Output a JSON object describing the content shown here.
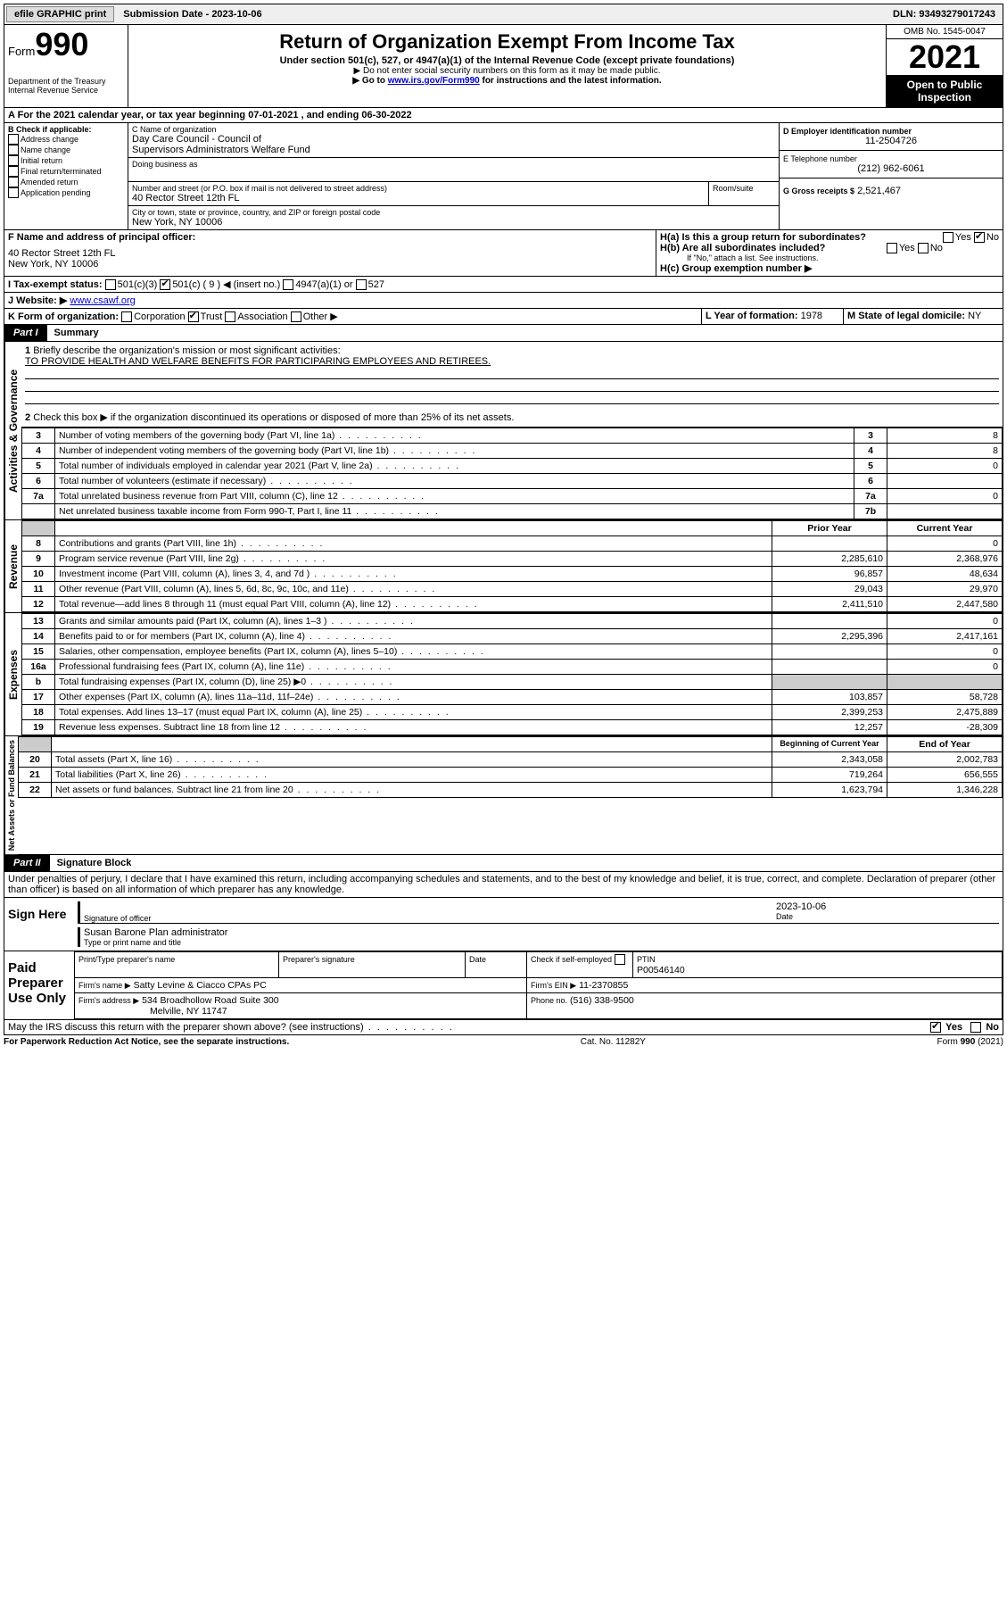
{
  "topbar": {
    "efile": "efile GRAPHIC print",
    "subdate_lbl": "Submission Date - 2023-10-06",
    "dln": "DLN: 93493279017243"
  },
  "header": {
    "form_word": "Form",
    "form_num": "990",
    "dept": "Department of the Treasury",
    "irs": "Internal Revenue Service",
    "title": "Return of Organization Exempt From Income Tax",
    "sub": "Under section 501(c), 527, or 4947(a)(1) of the Internal Revenue Code (except private foundations)",
    "ssn": "▶ Do not enter social security numbers on this form as it may be made public.",
    "goto_pre": "▶ Go to ",
    "goto_link": "www.irs.gov/Form990",
    "goto_post": " for instructions and the latest information.",
    "omb": "OMB No. 1545-0047",
    "year": "2021",
    "inspect": "Open to Public Inspection"
  },
  "A": {
    "line": "A For the 2021 calendar year, or tax year beginning 07-01-2021    , and ending 06-30-2022"
  },
  "B": {
    "hdr": "B Check if applicable:",
    "opts": [
      "Address change",
      "Name change",
      "Initial return",
      "Final return/terminated",
      "Amended return",
      "Application pending"
    ]
  },
  "C": {
    "name_lbl": "C Name of organization",
    "name1": "Day Care Council - Council of",
    "name2": "Supervisors Administrators Welfare Fund",
    "dba_lbl": "Doing business as",
    "addr_lbl": "Number and street (or P.O. box if mail is not delivered to street address)",
    "room_lbl": "Room/suite",
    "addr": "40 Rector Street 12th FL",
    "city_lbl": "City or town, state or province, country, and ZIP or foreign postal code",
    "city": "New York, NY  10006"
  },
  "D": {
    "lbl": "D Employer identification number",
    "val": "11-2504726"
  },
  "E": {
    "lbl": "E Telephone number",
    "val": "(212) 962-6061"
  },
  "G": {
    "lbl": "G Gross receipts $",
    "val": "2,521,467"
  },
  "F": {
    "lbl": "F  Name and address of principal officer:",
    "l1": "40 Rector Street 12th FL",
    "l2": "New York, NY  10006"
  },
  "H": {
    "a": "H(a)  Is this a group return for subordinates?",
    "b": "H(b)  Are all subordinates included?",
    "bnote": "If \"No,\" attach a list. See instructions.",
    "c": "H(c)  Group exemption number ▶",
    "yes": "Yes",
    "no": "No"
  },
  "I": {
    "lbl": "I    Tax-exempt status:",
    "opts": [
      "501(c)(3)",
      "501(c) ( 9 ) ◀ (insert no.)",
      "4947(a)(1) or",
      "527"
    ]
  },
  "J": {
    "lbl": "J   Website: ▶",
    "val": "www.csawf.org"
  },
  "K": {
    "lbl": "K Form of organization:",
    "opts": [
      "Corporation",
      "Trust",
      "Association",
      "Other ▶"
    ]
  },
  "L": {
    "lbl": "L Year of formation:",
    "val": "1978"
  },
  "M": {
    "lbl": "M State of legal domicile:",
    "val": "NY"
  },
  "part1": {
    "tag": "Part I",
    "title": "Summary",
    "q1": "Briefly describe the organization's mission or most significant activities:",
    "q1v": "TO PROVIDE HEALTH AND WELFARE BENEFITS FOR PARTICIPARING EMPLOYEES AND RETIREES.",
    "q2": "Check this box ▶        if the organization discontinued its operations or disposed of more than 25% of its net assets.",
    "rows_gov": [
      {
        "n": "3",
        "t": "Number of voting members of the governing body (Part VI, line 1a)",
        "b": "3",
        "v": "8"
      },
      {
        "n": "4",
        "t": "Number of independent voting members of the governing body (Part VI, line 1b)",
        "b": "4",
        "v": "8"
      },
      {
        "n": "5",
        "t": "Total number of individuals employed in calendar year 2021 (Part V, line 2a)",
        "b": "5",
        "v": "0"
      },
      {
        "n": "6",
        "t": "Total number of volunteers (estimate if necessary)",
        "b": "6",
        "v": ""
      },
      {
        "n": "7a",
        "t": "Total unrelated business revenue from Part VIII, column (C), line 12",
        "b": "7a",
        "v": "0"
      },
      {
        "n": "",
        "t": "Net unrelated business taxable income from Form 990-T, Part I, line 11",
        "b": "7b",
        "v": ""
      }
    ],
    "col_prior": "Prior Year",
    "col_curr": "Current Year",
    "revenue": [
      {
        "n": "8",
        "t": "Contributions and grants (Part VIII, line 1h)",
        "p": "",
        "c": "0"
      },
      {
        "n": "9",
        "t": "Program service revenue (Part VIII, line 2g)",
        "p": "2,285,610",
        "c": "2,368,976"
      },
      {
        "n": "10",
        "t": "Investment income (Part VIII, column (A), lines 3, 4, and 7d )",
        "p": "96,857",
        "c": "48,634"
      },
      {
        "n": "11",
        "t": "Other revenue (Part VIII, column (A), lines 5, 6d, 8c, 9c, 10c, and 11e)",
        "p": "29,043",
        "c": "29,970"
      },
      {
        "n": "12",
        "t": "Total revenue—add lines 8 through 11 (must equal Part VIII, column (A), line 12)",
        "p": "2,411,510",
        "c": "2,447,580"
      }
    ],
    "expenses": [
      {
        "n": "13",
        "t": "Grants and similar amounts paid (Part IX, column (A), lines 1–3 )",
        "p": "",
        "c": "0"
      },
      {
        "n": "14",
        "t": "Benefits paid to or for members (Part IX, column (A), line 4)",
        "p": "2,295,396",
        "c": "2,417,161"
      },
      {
        "n": "15",
        "t": "Salaries, other compensation, employee benefits (Part IX, column (A), lines 5–10)",
        "p": "",
        "c": "0"
      },
      {
        "n": "16a",
        "t": "Professional fundraising fees (Part IX, column (A), line 11e)",
        "p": "",
        "c": "0"
      },
      {
        "n": "b",
        "t": "Total fundraising expenses (Part IX, column (D), line 25) ▶0",
        "p": "shade",
        "c": "shade"
      },
      {
        "n": "17",
        "t": "Other expenses (Part IX, column (A), lines 11a–11d, 11f–24e)",
        "p": "103,857",
        "c": "58,728"
      },
      {
        "n": "18",
        "t": "Total expenses. Add lines 13–17 (must equal Part IX, column (A), line 25)",
        "p": "2,399,253",
        "c": "2,475,889"
      },
      {
        "n": "19",
        "t": "Revenue less expenses. Subtract line 18 from line 12",
        "p": "12,257",
        "c": "-28,309"
      }
    ],
    "col_boy": "Beginning of Current Year",
    "col_eoy": "End of Year",
    "net": [
      {
        "n": "20",
        "t": "Total assets (Part X, line 16)",
        "p": "2,343,058",
        "c": "2,002,783"
      },
      {
        "n": "21",
        "t": "Total liabilities (Part X, line 26)",
        "p": "719,264",
        "c": "656,555"
      },
      {
        "n": "22",
        "t": "Net assets or fund balances. Subtract line 21 from line 20",
        "p": "1,623,794",
        "c": "1,346,228"
      }
    ],
    "tab_gov": "Activities & Governance",
    "tab_rev": "Revenue",
    "tab_exp": "Expenses",
    "tab_net": "Net Assets or Fund Balances"
  },
  "part2": {
    "tag": "Part II",
    "title": "Signature Block",
    "decl": "Under penalties of perjury, I declare that I have examined this return, including accompanying schedules and statements, and to the best of my knowledge and belief, it is true, correct, and complete. Declaration of preparer (other than officer) is based on all information of which preparer has any knowledge.",
    "sign_here": "Sign Here",
    "sig_of": "Signature of officer",
    "date": "Date",
    "date_v": "2023-10-06",
    "name": "Susan Barone  Plan administrator",
    "name_lbl": "Type or print name and title",
    "paid": "Paid Preparer Use Only",
    "pt_name": "Print/Type preparer's name",
    "pt_sig": "Preparer's signature",
    "pt_date": "Date",
    "pt_check": "Check         if self-employed",
    "ptin_lbl": "PTIN",
    "ptin": "P00546140",
    "firm_name_lbl": "Firm's name     ▶",
    "firm_name": "Satty Levine & Ciacco CPAs PC",
    "firm_ein_lbl": "Firm's EIN ▶",
    "firm_ein": "11-2370855",
    "firm_addr_lbl": "Firm's address ▶",
    "firm_addr1": "534 Broadhollow Road Suite 300",
    "firm_addr2": "Melville, NY  11747",
    "phone_lbl": "Phone no.",
    "phone": "(516) 338-9500",
    "may": "May the IRS discuss this return with the preparer shown above? (see instructions)"
  },
  "footer": {
    "pra": "For Paperwork Reduction Act Notice, see the separate instructions.",
    "cat": "Cat. No. 11282Y",
    "form": "Form 990 (2021)"
  }
}
